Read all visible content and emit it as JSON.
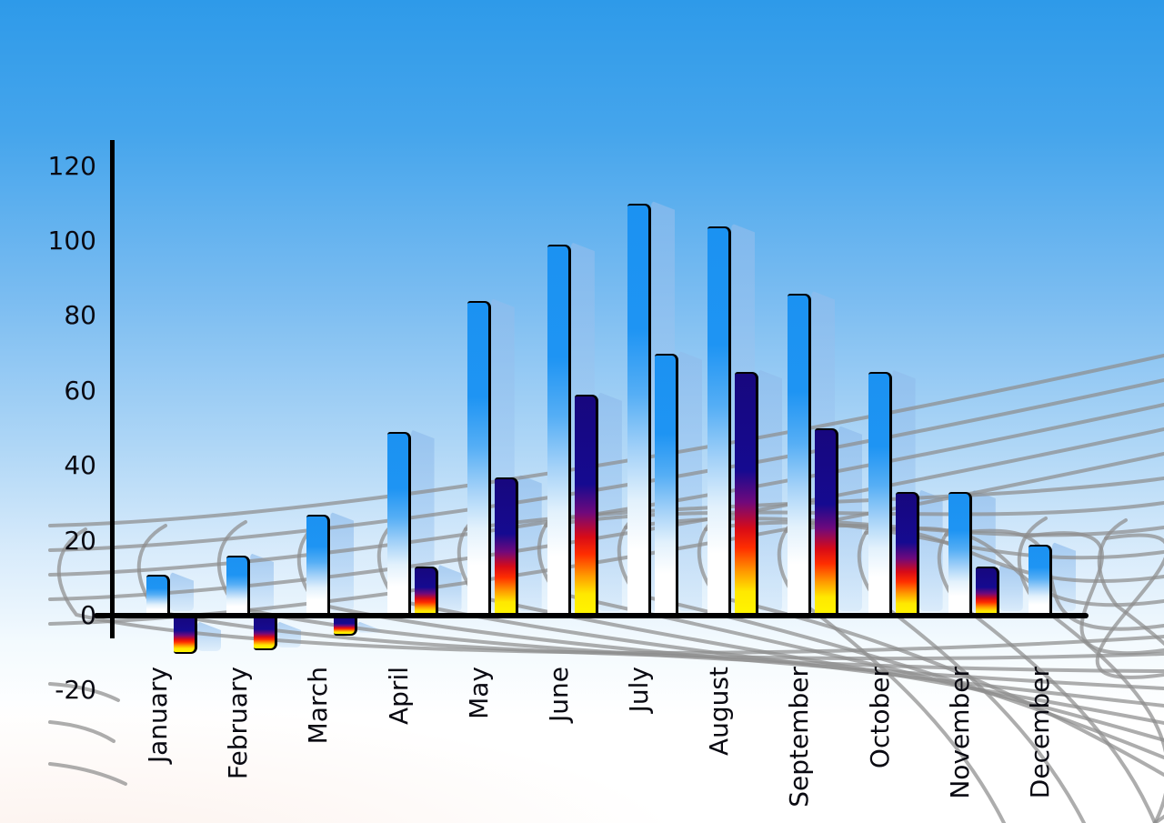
{
  "chart_data": {
    "type": "bar",
    "title": "",
    "xlabel": "",
    "ylabel": "",
    "categories": [
      "January",
      "February",
      "March",
      "April",
      "May",
      "June",
      "July",
      "August",
      "September",
      "October",
      "November",
      "December"
    ],
    "series": [
      {
        "name": "series-1-blue-bars",
        "values": [
          11,
          16,
          27,
          49,
          84,
          99,
          110,
          104,
          86,
          65,
          33,
          19
        ]
      },
      {
        "name": "series-2-flame-bars",
        "values": [
          -10,
          -9,
          -5,
          13,
          37,
          59,
          70,
          65,
          50,
          33,
          13,
          null
        ],
        "point_styles": [
          "flame",
          "flame",
          "flame",
          "flame",
          "flame",
          "flame",
          "blue",
          "flame",
          "flame",
          "flame",
          "flame",
          null
        ]
      }
    ],
    "ylim": [
      -20,
      120
    ],
    "y_ticks": [
      120,
      100,
      80,
      60,
      40,
      20,
      0,
      -20
    ],
    "legend": "none",
    "grid": "decorative curved gray perspective mesh",
    "x_tick_rotation": -90
  },
  "colors": {
    "sky_top": "#2E9AE9",
    "sky_bottom": "#FFFFFF",
    "bar_blue_top": "#1B92F2",
    "bar_blue_bottom": "#FFFFFF",
    "flame_navy": "#150A90",
    "flame_red": "#E81000",
    "flame_yellow": "#FFF600",
    "side_face_blue": "#A9CCEF",
    "grid_line": "#8E8E8E",
    "axis": "#000000",
    "label_text": "#0A0A12"
  }
}
